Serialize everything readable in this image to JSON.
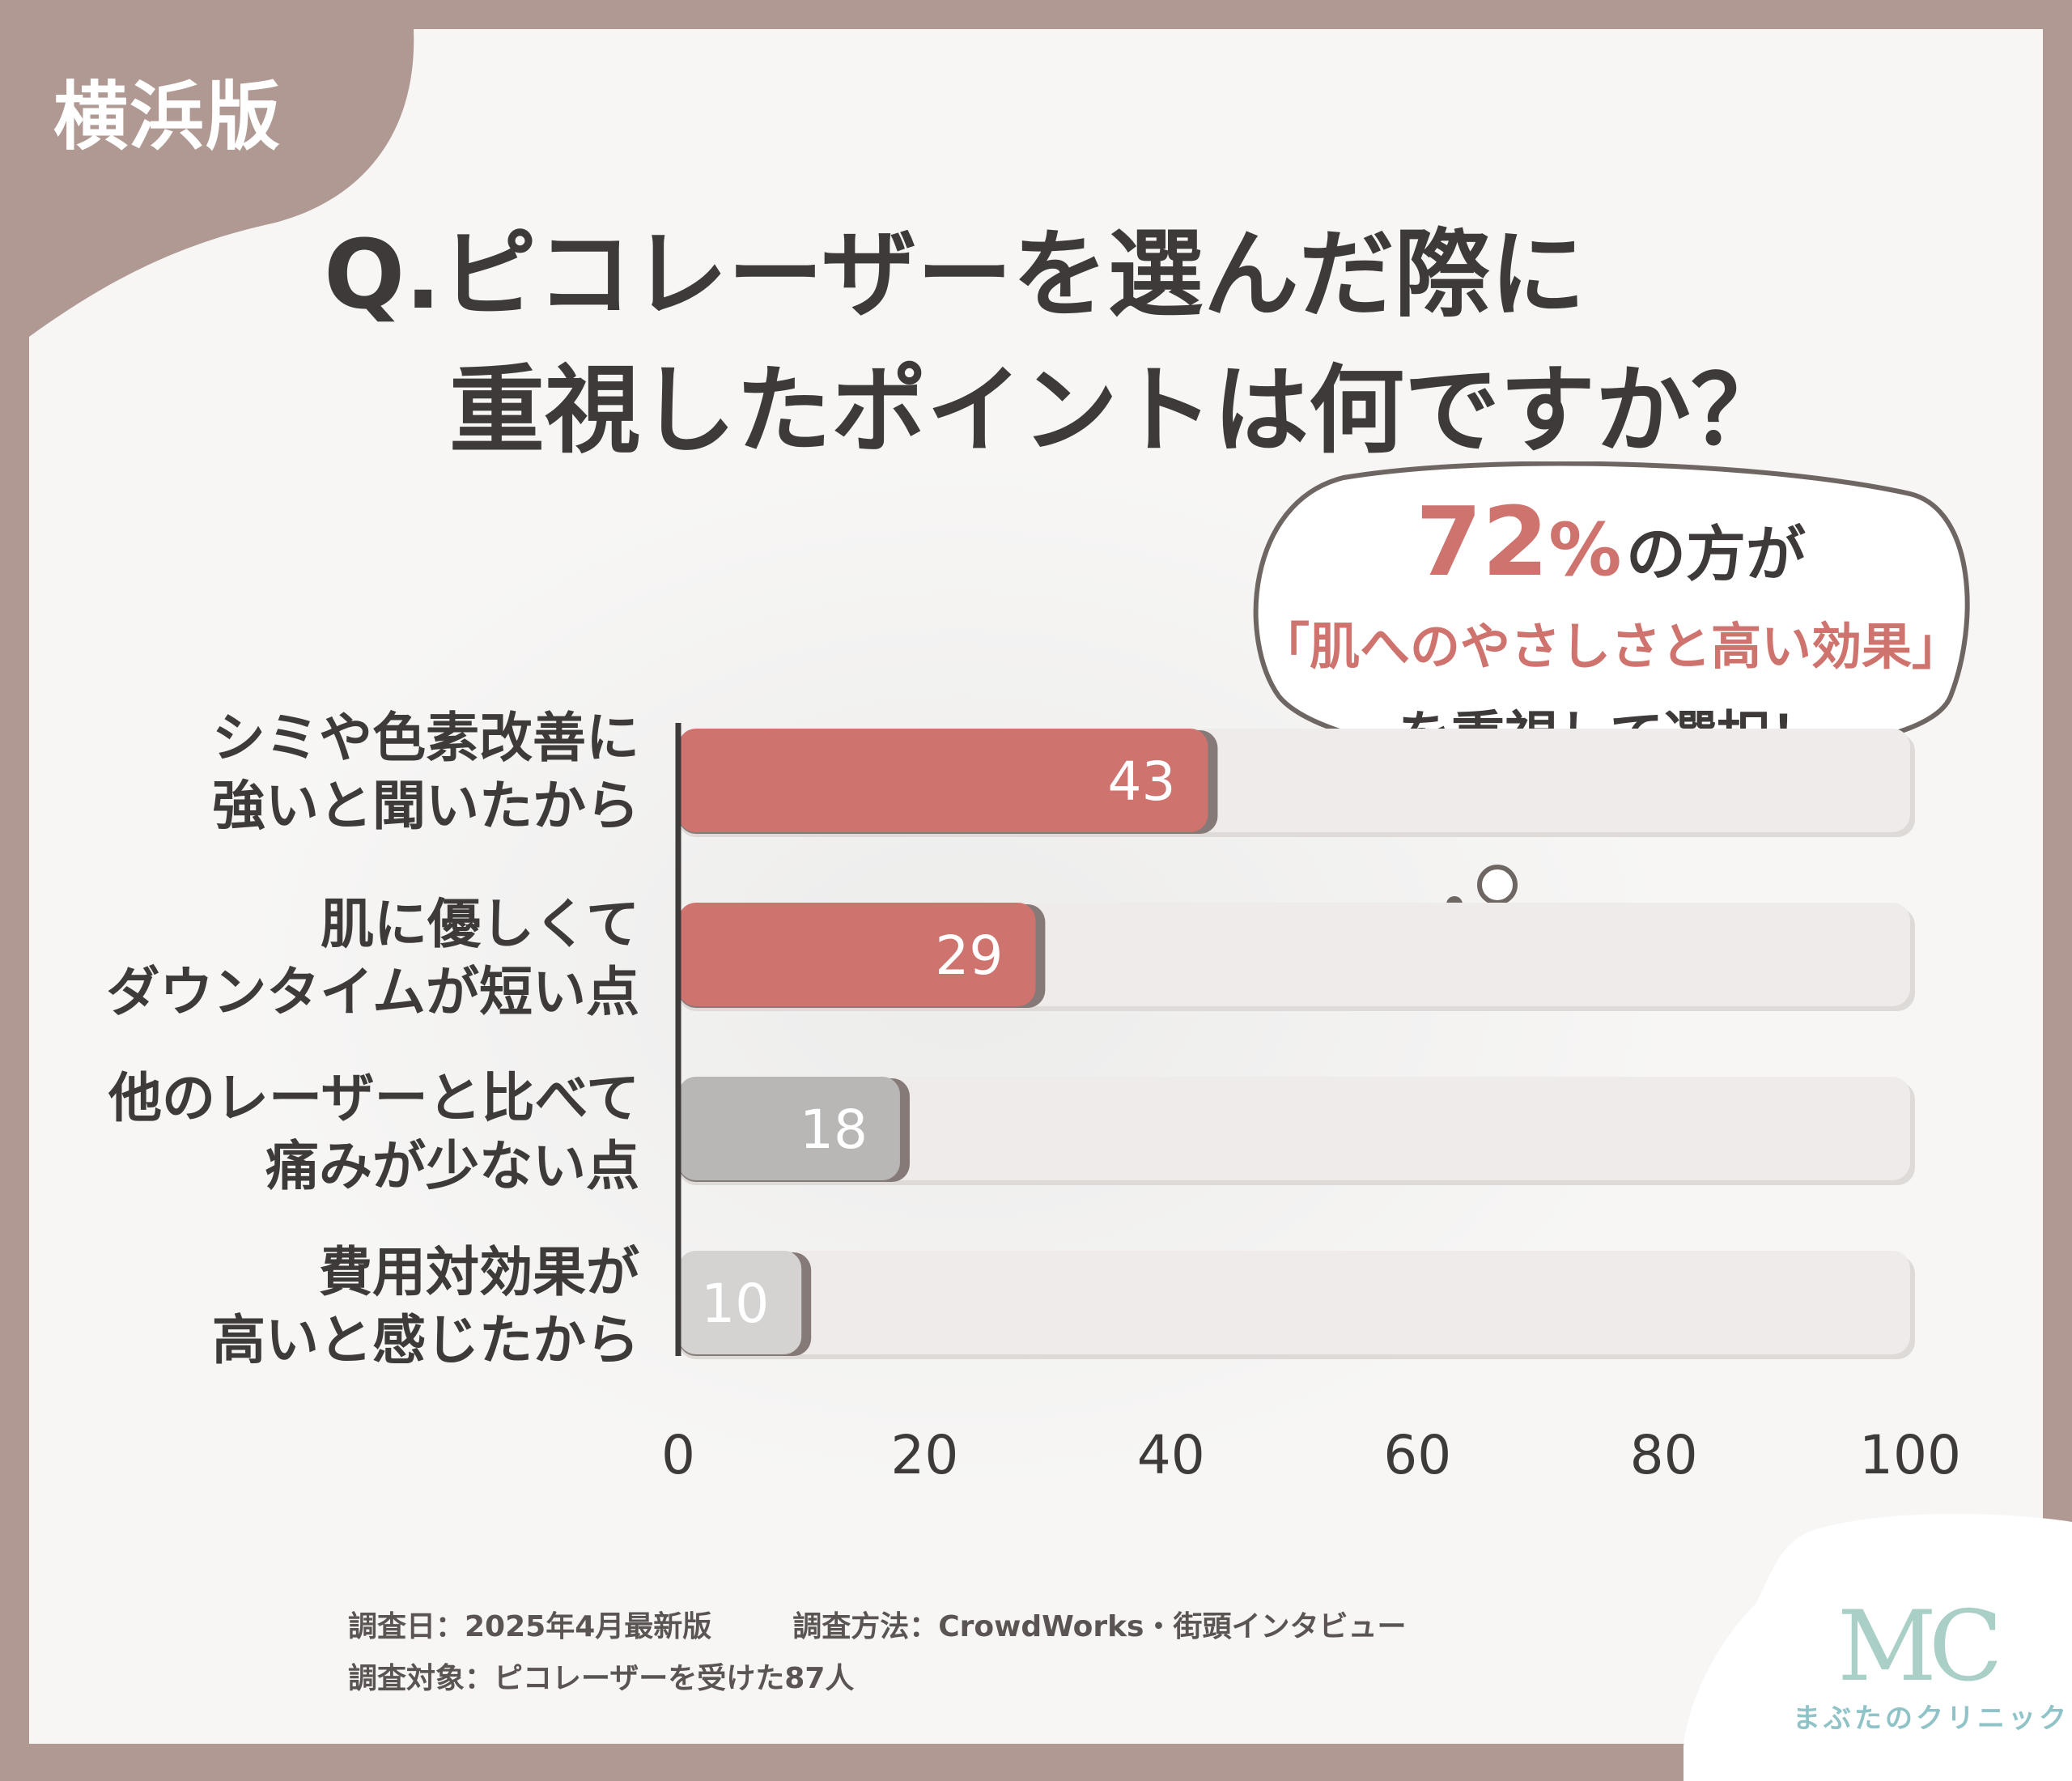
{
  "region_tag": "横浜版",
  "title_line1": "Q.ピコレーザーを選んだ際に",
  "title_line2": "重視したポイントは何ですか？",
  "callout": {
    "pct": "72",
    "pct_sign": "%",
    "pct_suffix": "の方が",
    "highlight": "「肌へのやさしさと高い効果」",
    "action": "を重視して選択！"
  },
  "footer": {
    "date": "調査日：2025年4月最新版",
    "method": "調査方法：CrowdWorks・街頭インタビュー",
    "target": "調査対象：ピコレーザーを受けた87人"
  },
  "logo": {
    "mark": "MC",
    "name": "まぶたのクリニック"
  },
  "colors": {
    "frame": "#b09993",
    "highlight_bar": "#cf736f",
    "muted_bar": "#b9b7b5",
    "light_bar": "#d4d3d2",
    "track": "#efebea",
    "text": "#3d3a39",
    "accent_text": "#cf736f"
  },
  "chart_data": {
    "type": "bar",
    "orientation": "horizontal",
    "categories": [
      [
        "シミや色素改善に",
        "強いと聞いたから"
      ],
      [
        "肌に優しくて",
        "ダウンタイムが短い点"
      ],
      [
        "他のレーザーと比べて",
        "痛みが少ない点"
      ],
      [
        "費用対効果が",
        "高いと感じたから"
      ]
    ],
    "values": [
      43,
      29,
      18,
      10
    ],
    "data_labels": [
      "43",
      "29",
      "18",
      "10"
    ],
    "xlim": [
      0,
      100
    ],
    "x_ticks": [
      "0",
      "20",
      "40",
      "60",
      "80",
      "100"
    ],
    "grid": false,
    "bar_colors": [
      "#cf736f",
      "#cf736f",
      "#b9b7b5",
      "#d4d3d2"
    ]
  }
}
